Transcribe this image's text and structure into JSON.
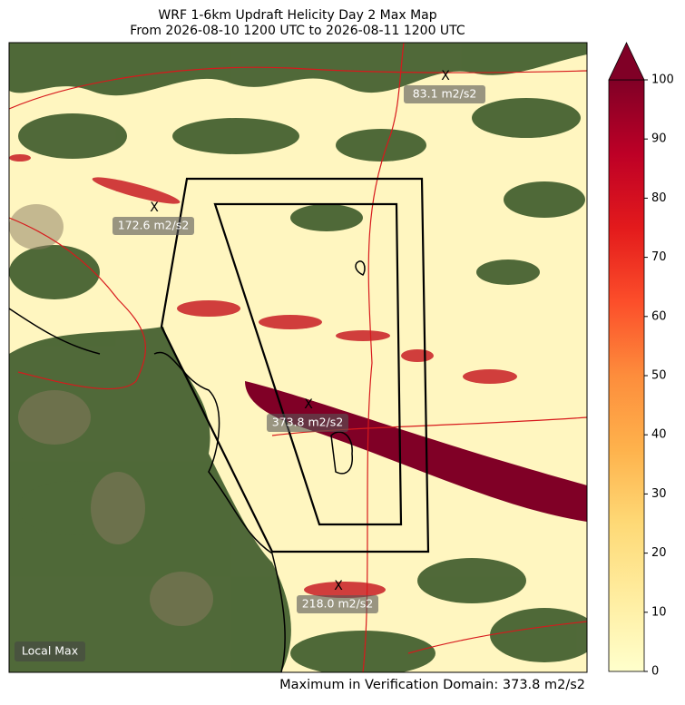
{
  "title": [
    "WRF 1-6km Updraft Helicity Day 2 Max Map",
    "From 2026-08-10 1200 UTC to 2026-08-11 1200 UTC"
  ],
  "colorbar": {
    "lim": [
      0,
      100
    ],
    "ticks": [
      0,
      10,
      20,
      30,
      40,
      50,
      60,
      70,
      80,
      90,
      100
    ]
  },
  "maxima": [
    {
      "marker": "X",
      "label": "83.1 m2/s2"
    },
    {
      "marker": "X",
      "label": "172.6 m2/s2"
    },
    {
      "marker": "X",
      "label": "373.8 m2/s2"
    },
    {
      "marker": "X",
      "label": "218.0 m2/s2"
    }
  ],
  "legend": "Local Max",
  "footer": "Maximum in Verification Domain: 373.8 m2/s2"
}
